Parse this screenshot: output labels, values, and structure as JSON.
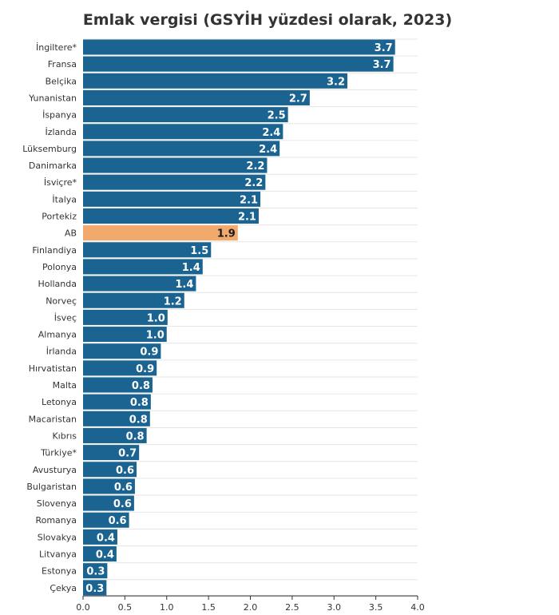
{
  "chart_data": {
    "type": "bar",
    "orientation": "horizontal",
    "title": "Emlak vergisi (GSYİH yüzdesi olarak, 2023)",
    "xlabel": "",
    "ylabel": "",
    "xlim": [
      0,
      4
    ],
    "ticks": [
      "0.0",
      "0.5",
      "1.0",
      "1.5",
      "2.0",
      "2.5",
      "3.0",
      "3.5",
      "4.0"
    ],
    "grid": true,
    "categories": [
      "İngiltere*",
      "Fransa",
      "Belçika",
      "Yunanistan",
      "İspanya",
      "İzlanda",
      "Lüksemburg",
      "Danimarka",
      "İsviçre*",
      "İtalya",
      "Portekiz",
      "AB",
      "Finlandiya",
      "Polonya",
      "Hollanda",
      "Norveç",
      "İsveç",
      "Almanya",
      "İrlanda",
      "Hırvatistan",
      "Malta",
      "Letonya",
      "Macaristan",
      "Kıbrıs",
      "Türkiye*",
      "Avusturya",
      "Bulgaristan",
      "Slovenya",
      "Romanya",
      "Slovakya",
      "Litvanya",
      "Estonya",
      "Çekya"
    ],
    "values": [
      3.73,
      3.71,
      3.16,
      2.71,
      2.45,
      2.39,
      2.35,
      2.2,
      2.18,
      2.12,
      2.1,
      1.85,
      1.53,
      1.43,
      1.35,
      1.21,
      1.01,
      1.0,
      0.93,
      0.88,
      0.83,
      0.81,
      0.8,
      0.76,
      0.67,
      0.64,
      0.62,
      0.61,
      0.55,
      0.41,
      0.4,
      0.29,
      0.28
    ],
    "value_labels": [
      "3.7",
      "3.7",
      "3.2",
      "2.7",
      "2.5",
      "2.4",
      "2.4",
      "2.2",
      "2.2",
      "2.1",
      "2.1",
      "1.9",
      "1.5",
      "1.4",
      "1.4",
      "1.2",
      "1.0",
      "1.0",
      "0.9",
      "0.9",
      "0.8",
      "0.8",
      "0.8",
      "0.8",
      "0.7",
      "0.6",
      "0.6",
      "0.6",
      "0.6",
      "0.4",
      "0.4",
      "0.3",
      "0.3"
    ],
    "colors": {
      "default": "#1b6390",
      "highlight": "#f2a96c",
      "label_default": "#ffffff",
      "label_highlight": "#1a1a1a",
      "grid": "#e6e6e6",
      "axis": "#333333"
    },
    "highlight": [
      "AB"
    ]
  }
}
